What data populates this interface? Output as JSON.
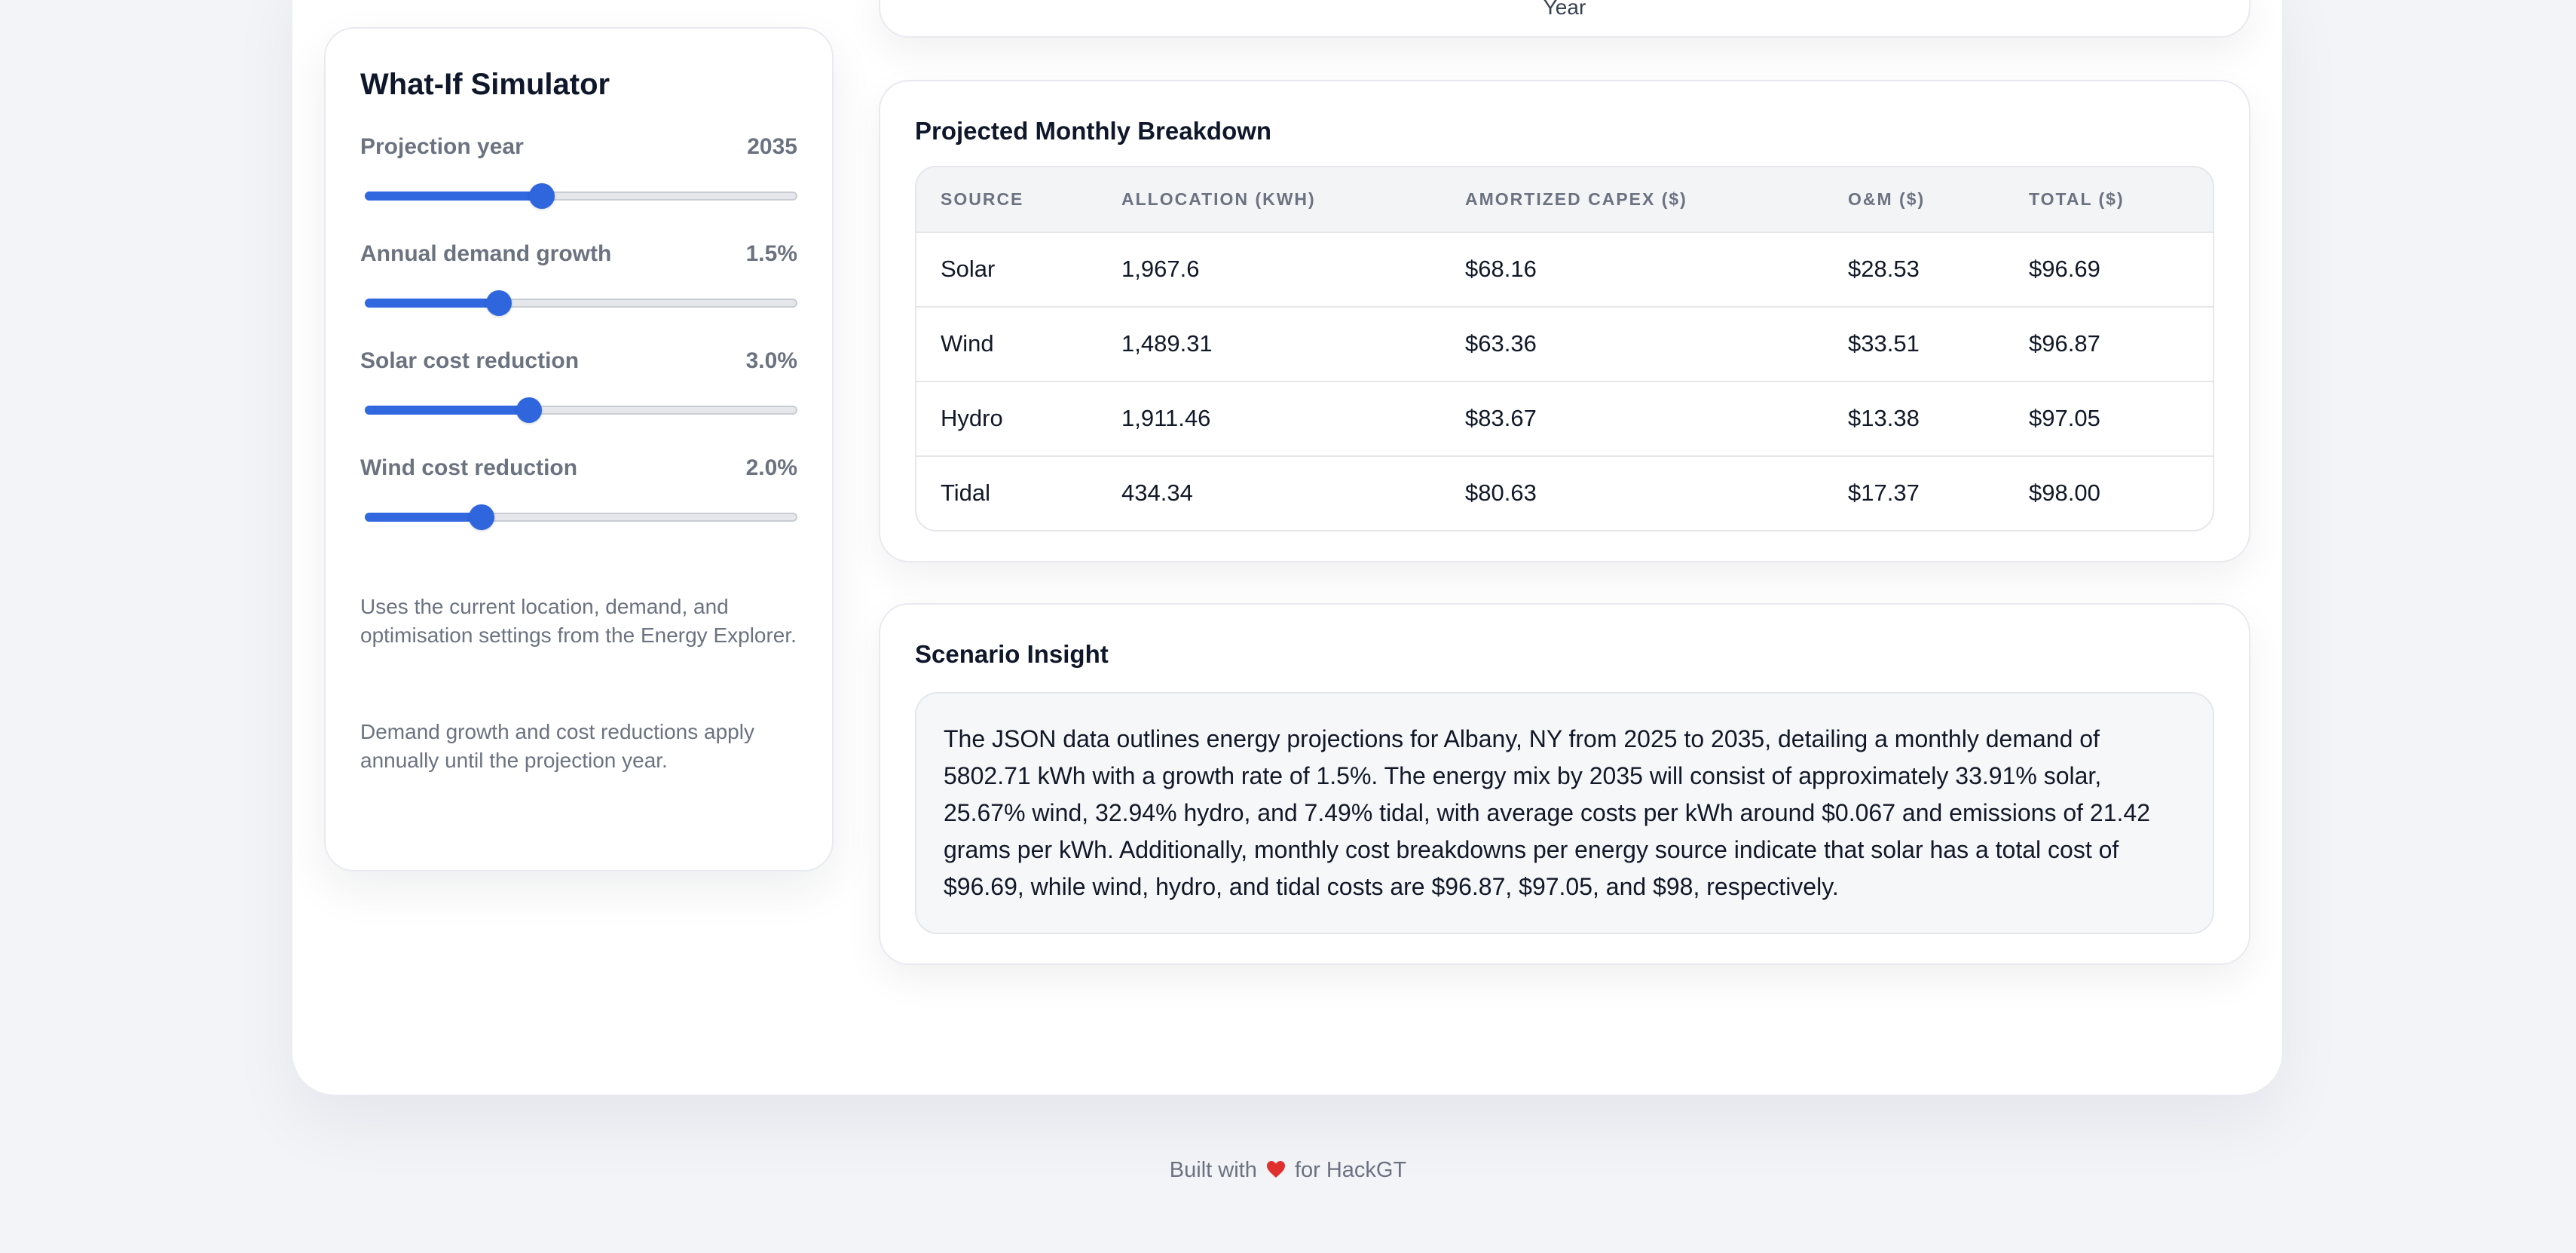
{
  "top_card": {
    "partial_label": "Year"
  },
  "simulator": {
    "title": "What-If Simulator",
    "controls": [
      {
        "label": "Projection year",
        "value": "2035",
        "level": 0.41
      },
      {
        "label": "Annual demand growth",
        "value": "1.5%",
        "level": 0.31
      },
      {
        "label": "Solar cost reduction",
        "value": "3.0%",
        "level": 0.38
      },
      {
        "label": "Wind cost reduction",
        "value": "2.0%",
        "level": 0.27
      }
    ],
    "note1": "Uses the current location, demand, and optimisation settings from the Energy Explorer.",
    "note2": "Demand growth and cost reductions apply annually until the projection year."
  },
  "breakdown": {
    "title": "Projected Monthly Breakdown",
    "headers": [
      "SOURCE",
      "ALLOCATION (KWH)",
      "AMORTIZED CAPEX ($)",
      "O&M ($)",
      "TOTAL ($)"
    ],
    "rows": [
      [
        "Solar",
        "1,967.6",
        "$68.16",
        "$28.53",
        "$96.69"
      ],
      [
        "Wind",
        "1,489.31",
        "$63.36",
        "$33.51",
        "$96.87"
      ],
      [
        "Hydro",
        "1,911.46",
        "$83.67",
        "$13.38",
        "$97.05"
      ],
      [
        "Tidal",
        "434.34",
        "$80.63",
        "$17.37",
        "$98.00"
      ]
    ]
  },
  "insight": {
    "title": "Scenario Insight",
    "text": "The JSON data outlines energy projections for Albany, NY from 2025 to 2035, detailing a monthly demand of 5802.71 kWh with a growth rate of 1.5%. The energy mix by 2035 will consist of approximately 33.91% solar, 25.67% wind, 32.94% hydro, and 7.49% tidal, with average costs per kWh around $0.067 and emissions of 21.42 grams per kWh. Additionally, monthly cost breakdowns per energy source indicate that solar has a total cost of $96.69, while wind, hydro, and tidal costs are $96.87, $97.05, and $98, respectively."
  },
  "footer": {
    "before": "Built with",
    "after": "for HackGT",
    "heart_icon": "heart-icon"
  },
  "colors": {
    "accent": "#3168e0",
    "heart": "#e0302d"
  }
}
